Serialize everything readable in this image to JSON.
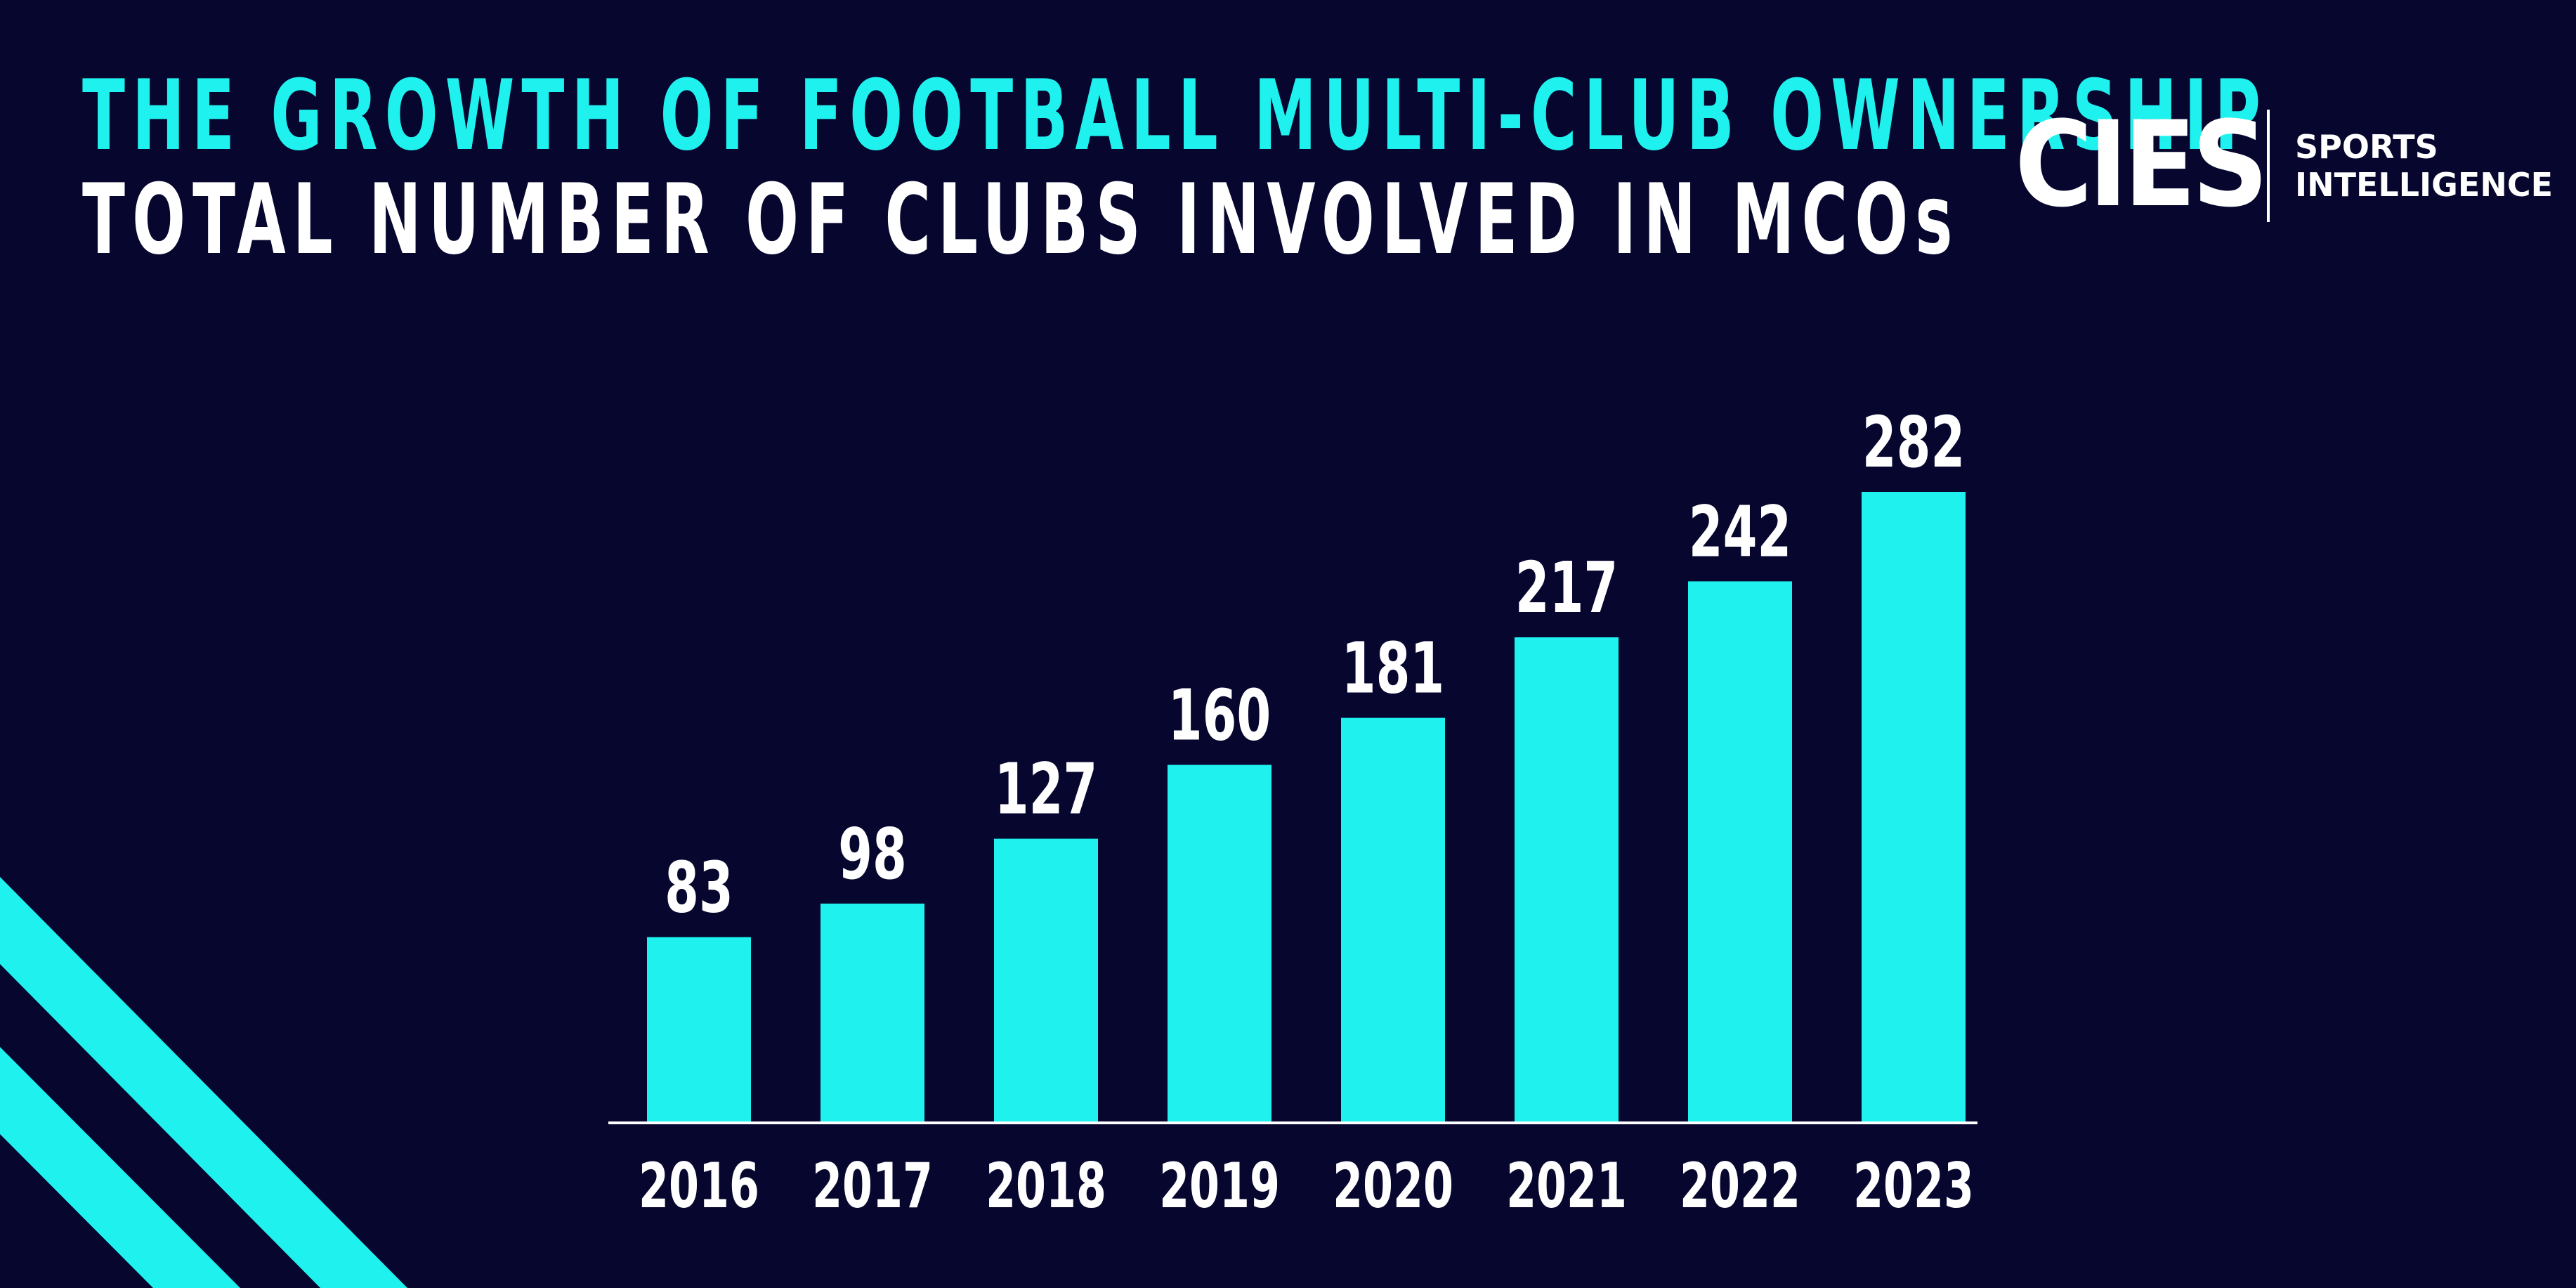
{
  "header": {
    "title": "THE GROWTH OF FOOTBALL MULTI-CLUB OWNERSHIP",
    "subtitle": "TOTAL NUMBER OF CLUBS INVOLVED IN MCOs"
  },
  "logo": {
    "brand": "CIES",
    "line1": "SPORTS",
    "line2": "INTELLIGENCE"
  },
  "colors": {
    "background": "#06062f",
    "accent": "#1ff2ee",
    "text": "#ffffff"
  },
  "chart_data": {
    "type": "bar",
    "title": "TOTAL NUMBER OF CLUBS INVOLVED IN MCOs",
    "xlabel": "",
    "ylabel": "",
    "categories": [
      "2016",
      "2017",
      "2018",
      "2019",
      "2020",
      "2021",
      "2022",
      "2023"
    ],
    "values": [
      83,
      98,
      127,
      160,
      181,
      217,
      242,
      282
    ],
    "ylim": [
      0,
      282
    ],
    "grid": false,
    "legend": "none",
    "data_labels": true
  }
}
